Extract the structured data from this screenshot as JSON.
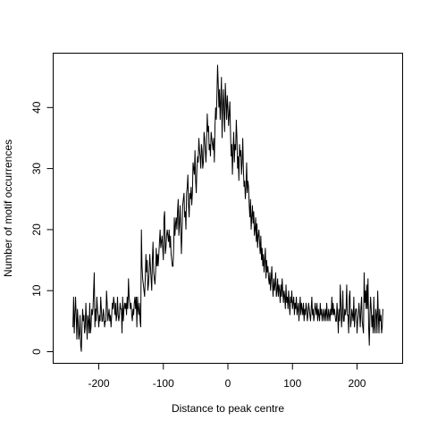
{
  "chart_data": {
    "type": "line",
    "title": "",
    "xlabel": "Distance to peak centre",
    "ylabel": "Number of motif occurrences",
    "xlim": [
      -250,
      250
    ],
    "ylim": [
      0,
      47
    ],
    "x_ticks": [
      -200,
      -100,
      0,
      100,
      200
    ],
    "y_ticks": [
      0,
      10,
      20,
      30,
      40
    ],
    "grid": false,
    "series": [
      {
        "x_start": -240,
        "x_step": 1,
        "values": [
          4,
          9,
          3,
          6,
          9,
          6,
          2,
          7,
          5,
          2,
          3,
          6,
          1,
          0,
          4,
          7,
          5,
          6,
          3,
          4,
          8,
          5,
          2,
          6,
          5,
          3,
          8,
          3,
          4,
          7,
          6,
          7,
          10,
          13,
          4,
          7,
          5,
          9,
          7,
          6,
          4,
          6,
          5,
          9,
          7,
          5,
          5,
          7,
          6,
          4,
          5,
          5,
          10,
          8,
          5,
          6,
          7,
          5,
          6,
          4,
          6,
          8,
          7,
          9,
          8,
          6,
          8,
          5,
          6,
          9,
          6,
          5,
          6,
          8,
          7,
          7,
          3,
          9,
          5,
          7,
          8,
          7,
          8,
          6,
          9,
          7,
          12,
          9,
          8,
          7,
          8,
          6,
          5,
          7,
          6,
          8,
          9,
          7,
          9,
          4,
          9,
          7,
          6,
          8,
          5,
          4,
          20,
          14,
          12,
          11,
          10,
          9,
          12,
          16,
          13,
          15,
          10,
          11,
          13,
          16,
          14,
          12,
          10,
          15,
          18,
          13,
          12,
          11,
          13,
          17,
          14,
          16,
          14,
          16,
          18,
          20,
          17,
          18,
          19,
          17,
          15,
          22,
          23,
          16,
          17,
          19,
          20,
          19,
          18,
          20,
          17,
          19,
          16,
          15,
          14,
          14,
          17,
          22,
          19,
          21,
          22,
          20,
          23,
          25,
          19,
          21,
          24,
          20,
          16,
          20,
          24,
          25,
          26,
          22,
          23,
          20,
          26,
          27,
          29,
          24,
          22,
          26,
          25,
          27,
          24,
          26,
          31,
          30,
          29,
          33,
          28,
          26,
          30,
          32,
          31,
          35,
          33,
          32,
          30,
          34,
          33,
          30,
          31,
          36,
          35,
          33,
          31,
          34,
          39,
          36,
          37,
          33,
          34,
          32,
          36,
          35,
          34,
          33,
          35,
          31,
          37,
          40,
          38,
          42,
          47,
          44,
          40,
          43,
          38,
          41,
          45,
          35,
          40,
          43,
          39,
          36,
          44,
          41,
          38,
          42,
          40,
          37,
          39,
          41,
          36,
          32,
          34,
          29,
          33,
          36,
          31,
          34,
          33,
          38,
          35,
          30,
          32,
          28,
          34,
          32,
          33,
          29,
          31,
          35,
          30,
          27,
          28,
          25,
          27,
          31,
          26,
          28,
          27,
          24,
          22,
          25,
          20,
          22,
          24,
          21,
          23,
          19,
          20,
          22,
          18,
          21,
          17,
          19,
          20,
          18,
          16,
          19,
          15,
          17,
          14,
          16,
          13,
          15,
          17,
          12,
          15,
          13,
          14,
          12,
          11,
          13,
          10,
          12,
          14,
          11,
          9,
          12,
          10,
          11,
          13,
          9,
          10,
          12,
          9,
          11,
          10,
          8,
          11,
          9,
          12,
          10,
          8,
          10,
          9,
          7,
          11,
          8,
          9,
          7,
          10,
          8,
          6,
          9,
          8,
          10,
          7,
          8,
          9,
          6,
          8,
          7,
          9,
          6,
          7,
          8,
          5,
          7,
          9,
          6,
          8,
          7,
          6,
          8,
          5,
          7,
          6,
          8,
          7,
          5,
          6,
          8,
          7,
          6,
          5,
          7,
          9,
          6,
          7,
          5,
          6,
          8,
          7,
          6,
          8,
          5,
          7,
          6,
          5,
          8,
          6,
          7,
          5,
          6,
          7,
          5,
          6,
          7,
          5,
          8,
          6,
          5,
          7,
          6,
          5,
          7,
          6,
          9,
          6,
          8,
          6,
          7,
          6,
          5,
          5,
          8,
          6,
          3,
          7,
          5,
          11,
          8,
          4,
          6,
          10,
          5,
          5,
          7,
          6,
          7,
          11,
          6,
          6,
          3,
          9,
          10,
          4,
          5,
          7,
          6,
          5,
          9,
          4,
          6,
          7,
          7,
          3,
          5,
          6,
          8,
          6,
          4,
          7,
          9,
          5,
          4,
          3,
          13,
          8,
          10,
          7,
          11,
          7,
          12,
          4,
          1,
          6,
          9,
          7,
          4,
          6,
          3,
          9,
          4,
          3,
          7,
          6,
          3,
          10,
          6,
          3,
          7,
          5,
          6,
          3,
          4,
          7
        ]
      }
    ]
  }
}
